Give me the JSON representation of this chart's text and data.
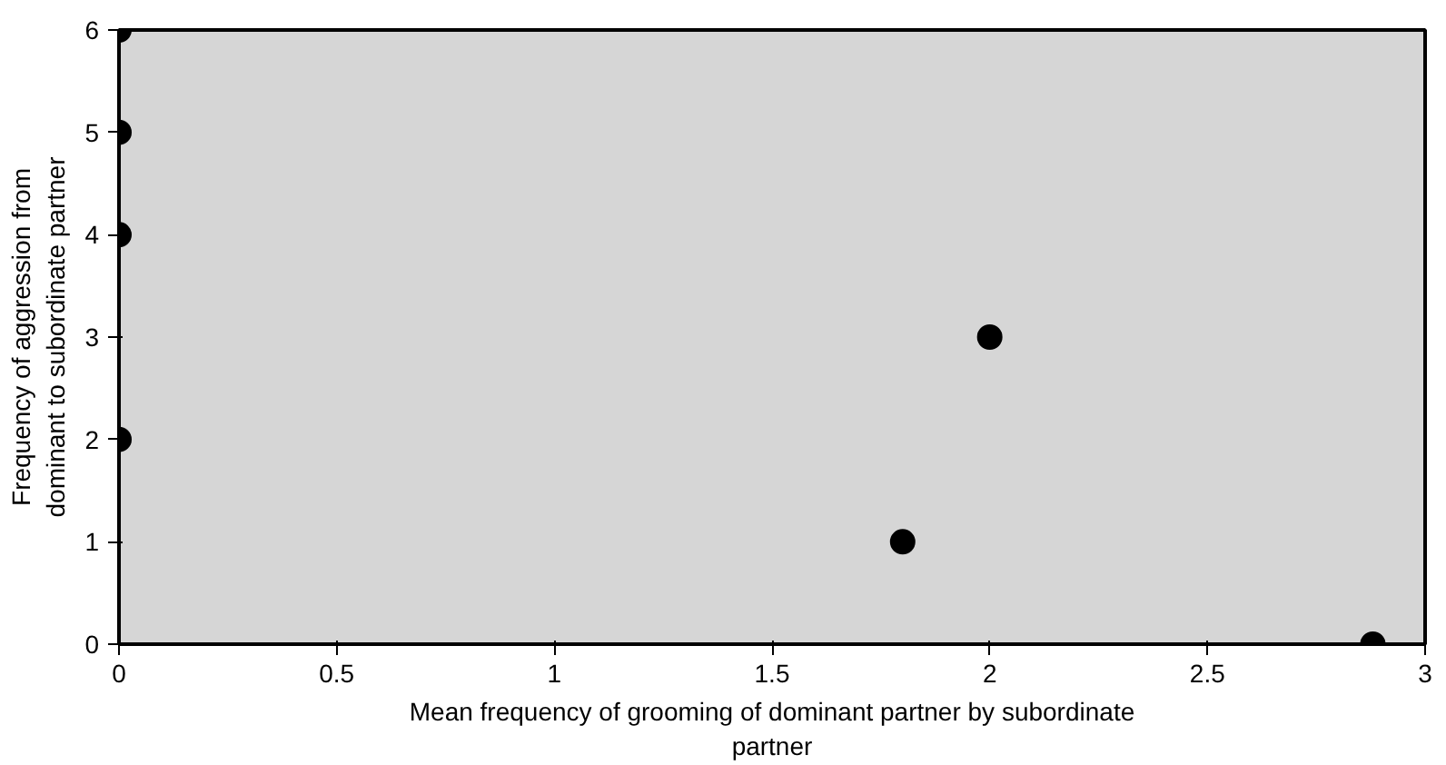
{
  "chart_data": {
    "type": "scatter",
    "xlabel": "Mean frequency of grooming of dominant partner by subordinate\npartner",
    "ylabel": "Frequency of aggression from\ndominant to subordinate partner",
    "x": [
      0,
      0,
      0,
      0,
      1.8,
      2,
      2.88
    ],
    "series": [
      {
        "color": "#000000",
        "values": [
          6,
          5,
          4,
          2,
          1,
          3,
          0
        ]
      }
    ],
    "xlim": [
      0,
      3
    ],
    "ylim": [
      0,
      6
    ],
    "xticks": [
      0,
      0.5,
      1,
      1.5,
      2,
      2.5,
      3
    ],
    "yticks": [
      0,
      1,
      2,
      3,
      4,
      5,
      6
    ],
    "grid": false,
    "marker": "circle"
  }
}
